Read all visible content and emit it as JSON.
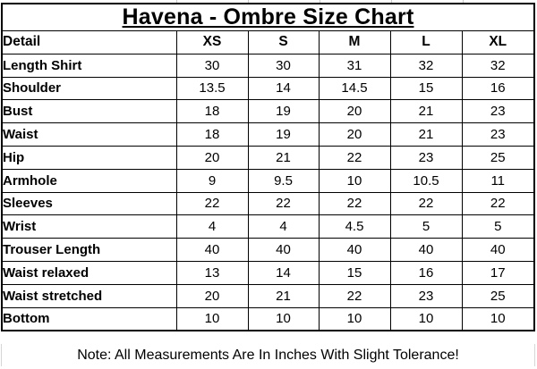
{
  "title": "Havena - Ombre Size Chart",
  "note": "Note: All Measurements Are In Inches With Slight Tolerance!",
  "colors": {
    "border": "#000000",
    "text": "#000000",
    "background": "#ffffff",
    "gridline_stub": "#c9c9c9"
  },
  "table": {
    "headers": [
      "Detail",
      "XS",
      "S",
      "M",
      "L",
      "XL"
    ],
    "rows": [
      {
        "label": "Length Shirt",
        "values": [
          "30",
          "30",
          "31",
          "32",
          "32"
        ]
      },
      {
        "label": "Shoulder",
        "values": [
          "13.5",
          "14",
          "14.5",
          "15",
          "16"
        ]
      },
      {
        "label": "Bust",
        "values": [
          "18",
          "19",
          "20",
          "21",
          "23"
        ]
      },
      {
        "label": "Waist",
        "values": [
          "18",
          "19",
          "20",
          "21",
          "23"
        ]
      },
      {
        "label": "Hip",
        "values": [
          "20",
          "21",
          "22",
          "23",
          "25"
        ]
      },
      {
        "label": "Armhole",
        "values": [
          "9",
          "9.5",
          "10",
          "10.5",
          "11"
        ]
      },
      {
        "label": "Sleeves",
        "values": [
          "22",
          "22",
          "22",
          "22",
          "22"
        ]
      },
      {
        "label": "Wrist",
        "values": [
          "4",
          "4",
          "4.5",
          "5",
          "5"
        ]
      },
      {
        "label": "Trouser Length",
        "values": [
          "40",
          "40",
          "40",
          "40",
          "40"
        ]
      },
      {
        "label": "Waist relaxed",
        "values": [
          "13",
          "14",
          "15",
          "16",
          "17"
        ]
      },
      {
        "label": "Waist stretched",
        "values": [
          "20",
          "21",
          "22",
          "23",
          "25"
        ]
      },
      {
        "label": "Bottom",
        "values": [
          "10",
          "10",
          "10",
          "10",
          "10"
        ]
      }
    ]
  },
  "chart_data": {
    "type": "table",
    "title": "Havena - Ombre Size Chart",
    "columns": [
      "Detail",
      "XS",
      "S",
      "M",
      "L",
      "XL"
    ],
    "rows": [
      [
        "Length Shirt",
        30,
        30,
        31,
        32,
        32
      ],
      [
        "Shoulder",
        13.5,
        14,
        14.5,
        15,
        16
      ],
      [
        "Bust",
        18,
        19,
        20,
        21,
        23
      ],
      [
        "Waist",
        18,
        19,
        20,
        21,
        23
      ],
      [
        "Hip",
        20,
        21,
        22,
        23,
        25
      ],
      [
        "Armhole",
        9,
        9.5,
        10,
        10.5,
        11
      ],
      [
        "Sleeves",
        22,
        22,
        22,
        22,
        22
      ],
      [
        "Wrist",
        4,
        4,
        4.5,
        5,
        5
      ],
      [
        "Trouser Length",
        40,
        40,
        40,
        40,
        40
      ],
      [
        "Waist relaxed",
        13,
        14,
        15,
        16,
        17
      ],
      [
        "Waist stretched",
        20,
        21,
        22,
        23,
        25
      ],
      [
        "Bottom",
        10,
        10,
        10,
        10,
        10
      ]
    ],
    "note": "Note: All Measurements Are In Inches With Slight Tolerance!",
    "units": "inches"
  }
}
